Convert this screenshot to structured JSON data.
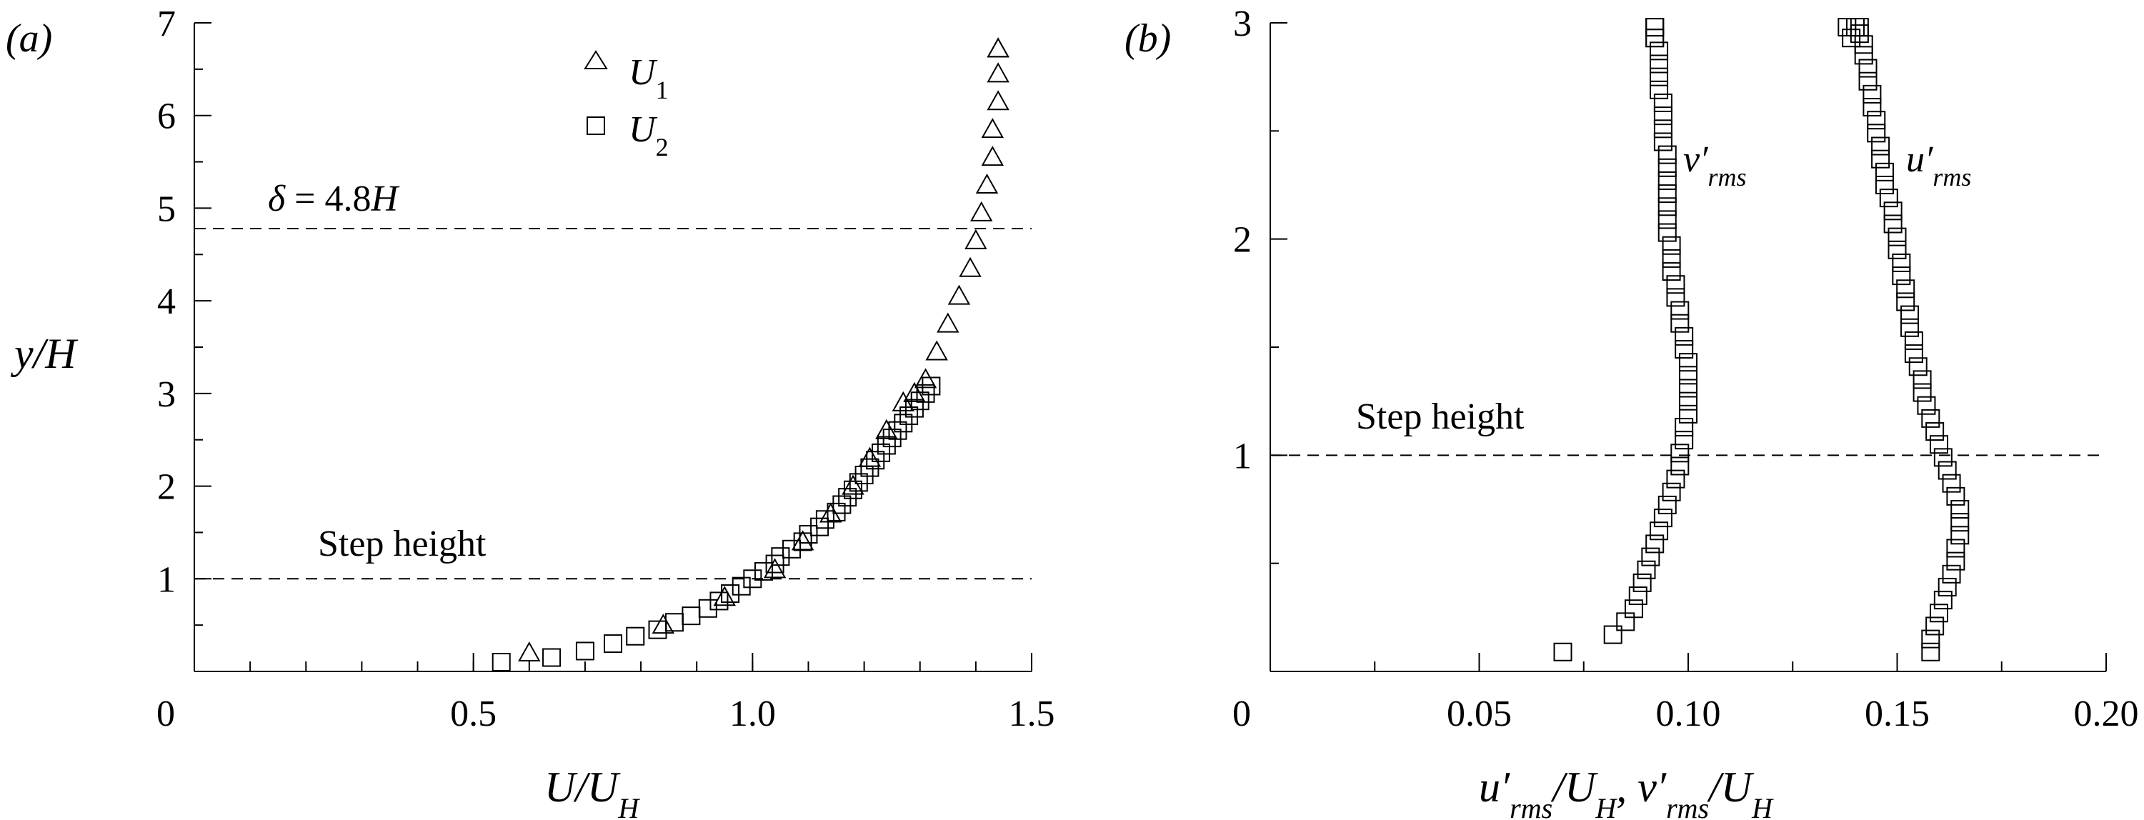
{
  "chart_data": [
    {
      "type": "scatter",
      "panel_label": "(a)",
      "xlabel": "U/U_H",
      "ylabel": "y/H",
      "xlim": [
        0,
        1.5
      ],
      "ylim": [
        0,
        7
      ],
      "xticks": [
        0.5,
        1.0,
        1.5
      ],
      "xtick_labels": [
        "0",
        "0.5",
        "1.0",
        "1.5"
      ],
      "yticks": [
        1,
        2,
        3,
        4,
        5,
        6,
        7
      ],
      "ytick_labels": [
        "1",
        "2",
        "3",
        "4",
        "5",
        "6",
        "7"
      ],
      "legend": {
        "position": "top-center",
        "entries": [
          {
            "name": "U1",
            "base": "U",
            "sub": "1",
            "marker": "triangle"
          },
          {
            "name": "U2",
            "base": "U",
            "sub": "2",
            "marker": "square"
          }
        ]
      },
      "reference_lines": [
        {
          "y": 4.78,
          "label": "δ = 4.8H"
        },
        {
          "y": 1.0,
          "label": "Step height"
        }
      ],
      "series": [
        {
          "name": "U1",
          "marker": "triangle",
          "x": [
            0.6,
            0.84,
            0.95,
            1.04,
            1.09,
            1.14,
            1.18,
            1.21,
            1.24,
            1.27,
            1.29,
            1.31,
            1.33,
            1.35,
            1.37,
            1.39,
            1.4,
            1.41,
            1.42,
            1.43,
            1.43,
            1.44,
            1.44,
            1.44,
            1.44
          ],
          "y": [
            0.2,
            0.5,
            0.8,
            1.1,
            1.4,
            1.7,
            2.0,
            2.3,
            2.6,
            2.9,
            3.0,
            3.15,
            3.45,
            3.75,
            4.05,
            4.35,
            4.65,
            4.95,
            5.25,
            5.55,
            5.85,
            6.15,
            6.45,
            6.72,
            6.72
          ]
        },
        {
          "name": "U2",
          "marker": "square",
          "x": [
            0.55,
            0.64,
            0.7,
            0.75,
            0.79,
            0.83,
            0.86,
            0.89,
            0.92,
            0.94,
            0.96,
            0.98,
            1.0,
            1.02,
            1.04,
            1.05,
            1.07,
            1.09,
            1.1,
            1.12,
            1.13,
            1.15,
            1.16,
            1.17,
            1.18,
            1.19,
            1.2,
            1.21,
            1.22,
            1.23,
            1.24,
            1.25,
            1.26,
            1.27,
            1.28,
            1.29,
            1.3,
            1.31,
            1.32
          ],
          "y": [
            0.1,
            0.15,
            0.22,
            0.3,
            0.38,
            0.45,
            0.53,
            0.6,
            0.68,
            0.76,
            0.84,
            0.92,
            1.0,
            1.08,
            1.16,
            1.24,
            1.32,
            1.4,
            1.48,
            1.56,
            1.64,
            1.72,
            1.8,
            1.88,
            1.96,
            2.04,
            2.12,
            2.2,
            2.28,
            2.36,
            2.44,
            2.52,
            2.6,
            2.68,
            2.76,
            2.84,
            2.92,
            3.0,
            3.08
          ]
        }
      ]
    },
    {
      "type": "scatter",
      "panel_label": "(b)",
      "xlabel": "u'rms/UH, v'rms/UH",
      "ylabel": "",
      "xlim": [
        0,
        0.2
      ],
      "ylim": [
        0,
        3
      ],
      "xticks": [
        0.05,
        0.1,
        0.15,
        0.2
      ],
      "xtick_labels": [
        "0",
        "0.05",
        "0.10",
        "0.15",
        "0.20"
      ],
      "yticks": [
        1,
        2,
        3
      ],
      "ytick_labels": [
        "1",
        "2",
        "3"
      ],
      "reference_lines": [
        {
          "y": 1.0,
          "label": "Step height"
        }
      ],
      "series_labels": [
        {
          "name": "v'rms",
          "base": "v",
          "sub": "rms"
        },
        {
          "name": "u'rms",
          "base": "u",
          "sub": "rms"
        }
      ],
      "series": [
        {
          "name": "v'rms",
          "marker": "square",
          "x": [
            0.07,
            0.082,
            0.085,
            0.087,
            0.088,
            0.089,
            0.09,
            0.091,
            0.092,
            0.093,
            0.094,
            0.095,
            0.096,
            0.097,
            0.098,
            0.098,
            0.099,
            0.099,
            0.1,
            0.1,
            0.1,
            0.1,
            0.1,
            0.099,
            0.099,
            0.098,
            0.098,
            0.097,
            0.097,
            0.096,
            0.096,
            0.096,
            0.095,
            0.095,
            0.095,
            0.095,
            0.095,
            0.095,
            0.095,
            0.094,
            0.094,
            0.094,
            0.094,
            0.093,
            0.093,
            0.093,
            0.093,
            0.092,
            0.092,
            0.092,
            0.092,
            0.092
          ],
          "y": [
            0.09,
            0.17,
            0.23,
            0.29,
            0.35,
            0.41,
            0.47,
            0.53,
            0.59,
            0.65,
            0.71,
            0.77,
            0.83,
            0.89,
            0.95,
            1.01,
            1.07,
            1.13,
            1.19,
            1.25,
            1.31,
            1.37,
            1.43,
            1.49,
            1.55,
            1.61,
            1.67,
            1.73,
            1.79,
            1.85,
            1.91,
            1.97,
            2.03,
            2.09,
            2.15,
            2.21,
            2.27,
            2.33,
            2.39,
            2.45,
            2.51,
            2.57,
            2.63,
            2.69,
            2.75,
            2.81,
            2.87,
            2.93,
            2.98,
            2.93,
            2.98,
            2.98
          ]
        },
        {
          "name": "u'rms",
          "marker": "square",
          "x": [
            0.158,
            0.158,
            0.159,
            0.16,
            0.161,
            0.162,
            0.163,
            0.164,
            0.164,
            0.165,
            0.165,
            0.165,
            0.164,
            0.163,
            0.162,
            0.161,
            0.16,
            0.159,
            0.158,
            0.157,
            0.156,
            0.156,
            0.155,
            0.154,
            0.154,
            0.153,
            0.153,
            0.152,
            0.152,
            0.151,
            0.151,
            0.15,
            0.15,
            0.149,
            0.149,
            0.148,
            0.147,
            0.147,
            0.146,
            0.146,
            0.145,
            0.145,
            0.144,
            0.144,
            0.143,
            0.143,
            0.142,
            0.142,
            0.141,
            0.141,
            0.14,
            0.139,
            0.138
          ],
          "y": [
            0.09,
            0.15,
            0.21,
            0.27,
            0.33,
            0.39,
            0.45,
            0.51,
            0.57,
            0.63,
            0.69,
            0.75,
            0.81,
            0.87,
            0.93,
            0.99,
            1.05,
            1.11,
            1.17,
            1.23,
            1.29,
            1.35,
            1.41,
            1.47,
            1.53,
            1.59,
            1.65,
            1.71,
            1.77,
            1.83,
            1.89,
            1.95,
            2.01,
            2.07,
            2.13,
            2.19,
            2.25,
            2.31,
            2.37,
            2.43,
            2.49,
            2.55,
            2.61,
            2.67,
            2.73,
            2.79,
            2.85,
            2.9,
            2.95,
            2.98,
            2.98,
            2.93,
            2.98
          ]
        }
      ]
    }
  ]
}
